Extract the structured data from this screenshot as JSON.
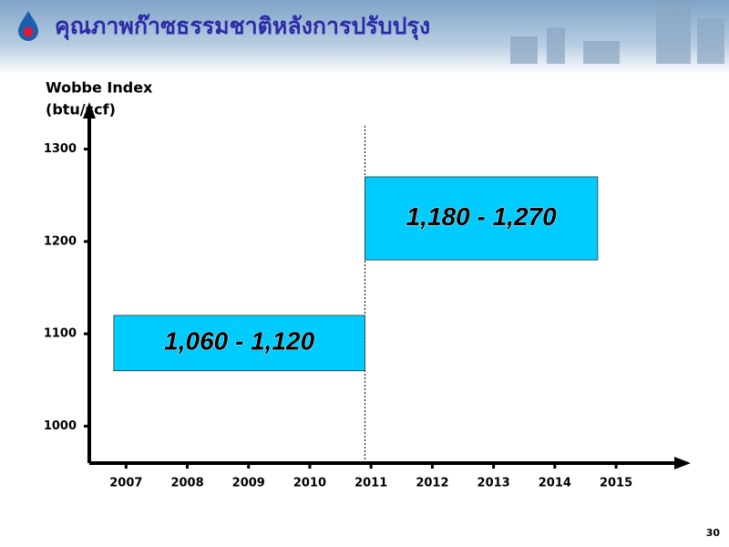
{
  "header": {
    "title": "คุณภาพก๊าซธรรมชาติหลังการปรับปรุง"
  },
  "page_number": "30",
  "chart_data": {
    "type": "floating-bar",
    "ylabel": [
      "Wobbe Index",
      "(btu/scf)"
    ],
    "xlim": [
      2006.4,
      2016.1
    ],
    "xticks": [
      2007,
      2008,
      2009,
      2010,
      2011,
      2012,
      2013,
      2014,
      2015
    ],
    "ylim": [
      960,
      1345
    ],
    "yticks": [
      1000,
      1100,
      1200,
      1300
    ],
    "color": "#00ccff",
    "divider_x": 2010.9,
    "ranges": [
      {
        "x": [
          2006.8,
          2010.9
        ],
        "low": 1060,
        "high": 1120,
        "label": "1,060 - 1,120"
      },
      {
        "x": [
          2010.9,
          2014.7
        ],
        "low": 1180,
        "high": 1270,
        "label": "1,180 - 1,270"
      }
    ]
  }
}
